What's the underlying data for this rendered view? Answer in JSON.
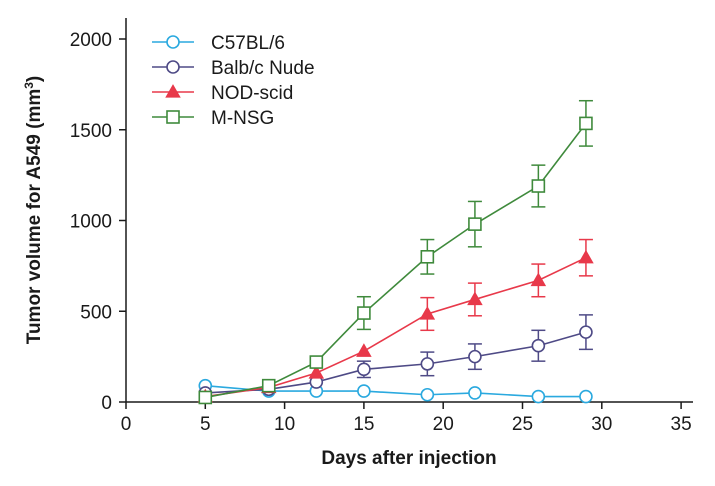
{
  "chart_data": {
    "type": "line",
    "title": "",
    "xlabel": "Days after injection",
    "ylabel_main": "Tumor volume for A549 (mm",
    "ylabel_sup": "3",
    "ylabel_end": ")",
    "xlim": [
      0,
      35
    ],
    "ylim": [
      0,
      2000
    ],
    "xticks": [
      0,
      5,
      10,
      15,
      20,
      25,
      30,
      35
    ],
    "yticks": [
      0,
      500,
      1000,
      1500,
      2000
    ],
    "grid": false,
    "legend_position": "top-left",
    "series": [
      {
        "name": "C57BL/6",
        "color": "#2aa9df",
        "marker": "circle",
        "x": [
          5,
          9,
          12,
          15,
          19,
          22,
          26,
          29
        ],
        "values": [
          90,
          60,
          60,
          60,
          40,
          50,
          30,
          30
        ],
        "errors": [
          0,
          0,
          0,
          0,
          0,
          0,
          0,
          0
        ]
      },
      {
        "name": "Balb/c Nude",
        "color": "#4e4a86",
        "marker": "circle",
        "x": [
          5,
          9,
          12,
          15,
          19,
          22,
          26,
          29
        ],
        "values": [
          50,
          70,
          110,
          180,
          210,
          250,
          310,
          385
        ],
        "errors": [
          0,
          0,
          0,
          45,
          65,
          70,
          85,
          95
        ]
      },
      {
        "name": "NOD-scid",
        "color": "#e8394a",
        "marker": "triangle",
        "x": [
          5,
          9,
          12,
          15,
          19,
          22,
          26,
          29
        ],
        "values": [
          30,
          80,
          160,
          280,
          485,
          565,
          670,
          795
        ],
        "errors": [
          0,
          0,
          0,
          0,
          90,
          90,
          90,
          100
        ]
      },
      {
        "name": "M-NSG",
        "color": "#3f8a3c",
        "marker": "square",
        "x": [
          5,
          9,
          12,
          15,
          19,
          22,
          26,
          29
        ],
        "values": [
          25,
          90,
          220,
          490,
          800,
          980,
          1190,
          1535
        ],
        "errors": [
          0,
          0,
          0,
          90,
          95,
          125,
          115,
          125
        ]
      }
    ]
  }
}
